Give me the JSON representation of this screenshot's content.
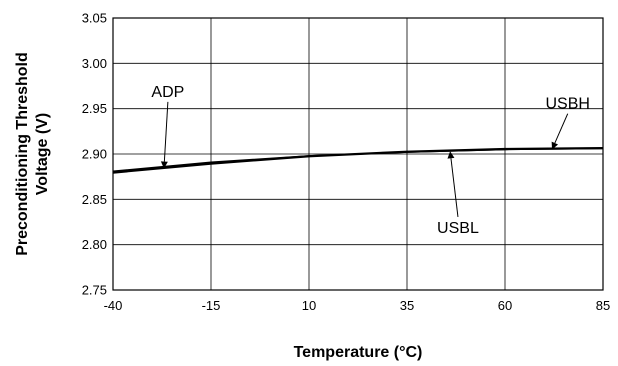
{
  "chart_data": {
    "type": "line",
    "title": "",
    "xlabel": "Temperature (°C)",
    "ylabel_lines": [
      "Preconditioning Threshold",
      "Voltage (V)"
    ],
    "xlim": [
      -40,
      85
    ],
    "ylim": [
      2.75,
      3.05
    ],
    "xticks": [
      -40,
      -15,
      10,
      35,
      60,
      85
    ],
    "xtick_labels": [
      "-40",
      "-15",
      "10",
      "35",
      "60",
      "85"
    ],
    "yticks": [
      2.75,
      2.8,
      2.85,
      2.9,
      2.95,
      3.0,
      3.05
    ],
    "ytick_labels": [
      "2.75",
      "2.80",
      "2.85",
      "2.90",
      "2.95",
      "3.00",
      "3.05"
    ],
    "grid": true,
    "series": [
      {
        "name": "ADP",
        "x": [
          -40,
          -15,
          10,
          35,
          60,
          85
        ],
        "y": [
          2.879,
          2.889,
          2.897,
          2.902,
          2.905,
          2.906
        ]
      },
      {
        "name": "USBL",
        "x": [
          -40,
          -15,
          10,
          35,
          60,
          85
        ],
        "y": [
          2.88,
          2.89,
          2.898,
          2.902,
          2.905,
          2.906
        ]
      },
      {
        "name": "USBH",
        "x": [
          -40,
          -15,
          10,
          35,
          60,
          85
        ],
        "y": [
          2.881,
          2.891,
          2.898,
          2.903,
          2.906,
          2.907
        ]
      }
    ],
    "annotations": [
      {
        "text": "ADP",
        "point": [
          -27,
          2.884
        ],
        "label_at": [
          -26,
          2.963
        ]
      },
      {
        "text": "USBL",
        "point": [
          46,
          2.903
        ],
        "label_at": [
          48,
          2.813
        ]
      },
      {
        "text": "USBH",
        "point": [
          72,
          2.905
        ],
        "label_at": [
          76,
          2.95
        ]
      }
    ]
  }
}
